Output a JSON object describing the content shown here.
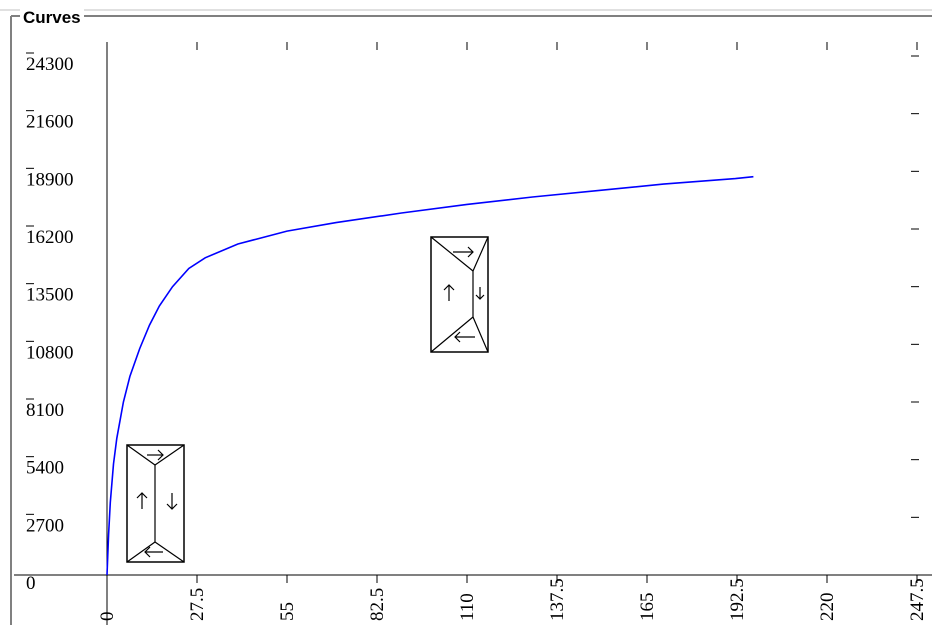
{
  "panel": {
    "title": "Curves"
  },
  "chart_data": {
    "type": "line",
    "title": "",
    "xlabel": "",
    "ylabel": "",
    "xlim": [
      0,
      247.5
    ],
    "ylim": [
      0,
      24300
    ],
    "x_ticks": [
      0,
      27.5,
      55,
      82.5,
      110,
      137.5,
      165,
      192.5,
      220,
      247.5
    ],
    "x_tick_labels": [
      "0",
      "27.5",
      "55",
      "82.5",
      "110",
      "137.5",
      "165",
      "192.5",
      "220",
      "247.5"
    ],
    "y_ticks": [
      0,
      2700,
      5400,
      8100,
      10800,
      13500,
      16200,
      18900,
      21600,
      24300
    ],
    "y_tick_labels": [
      "0",
      "2700",
      "5400",
      "8100",
      "10800",
      "13500",
      "16200",
      "18900",
      "21600",
      "24300"
    ],
    "grid": false,
    "series": [
      {
        "color": "#0000ff",
        "x": [
          0,
          0.5,
          1,
          2,
          3,
          5,
          7,
          10,
          13,
          16,
          20,
          25,
          30,
          40,
          55,
          70,
          90,
          110,
          130,
          150,
          170,
          185,
          192,
          197.5
        ],
        "y": [
          0,
          1900,
          3400,
          5200,
          6400,
          8100,
          9300,
          10600,
          11700,
          12600,
          13500,
          14350,
          14850,
          15500,
          16100,
          16500,
          16950,
          17350,
          17700,
          18000,
          18300,
          18480,
          18560,
          18650
        ]
      }
    ]
  },
  "icons": {
    "marker_1": "cycle-arrows-icon",
    "marker_2": "cycle-arrows-icon"
  }
}
